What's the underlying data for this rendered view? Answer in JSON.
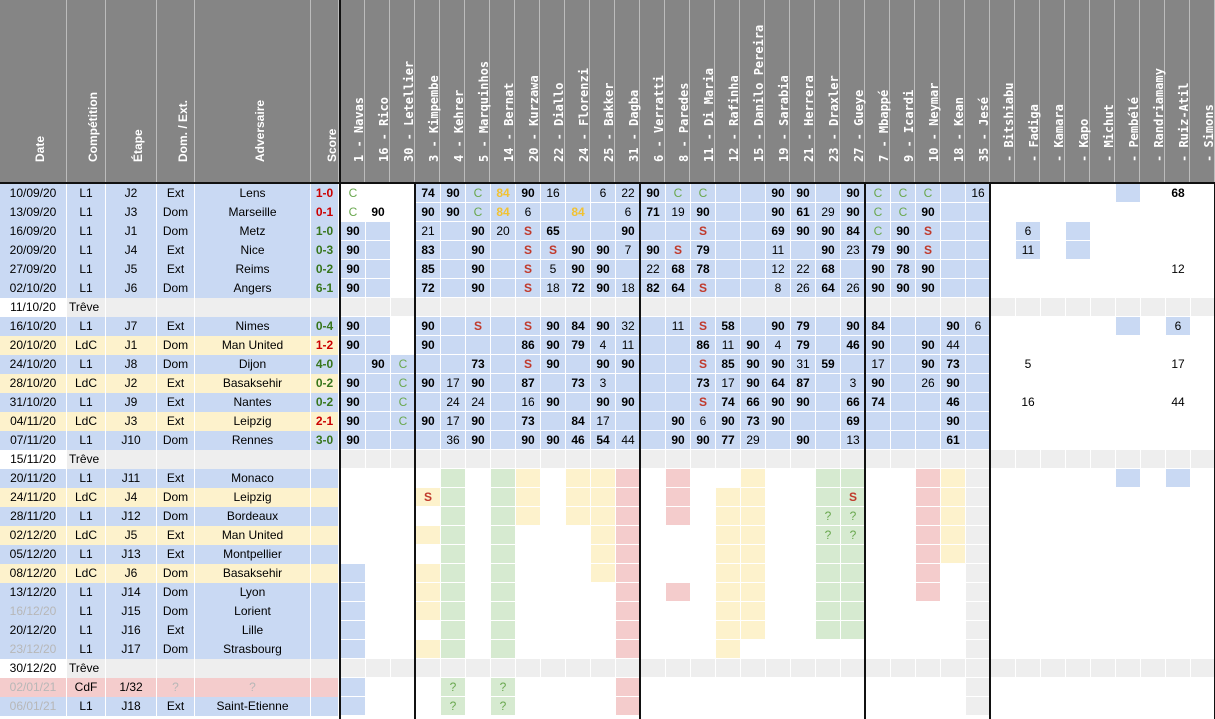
{
  "meta_headers": [
    "Date",
    "Compétition",
    "Étape",
    "Dom. / Ext.",
    "Adversaire",
    "Score"
  ],
  "players": [
    "1 - Navas",
    "16 - Rico",
    "30 - Letellier",
    "3 - Kimpembe",
    "4 - Kehrer",
    "5 - Marquinhos",
    "14 - Bernat",
    "20 - Kurzawa",
    "22 - Diallo",
    "24 - Florenzi",
    "25 - Bakker",
    "31 - Dagba",
    "6 - Verratti",
    "8 - Paredes",
    "11 - Di Maria",
    "12 - Rafinha",
    "15 - Danilo Pereira",
    "19 - Sarabia",
    "21 - Herrera",
    "23 - Draxler",
    "27 - Gueye",
    "7 - Mbappé",
    "9 - Icardi",
    "10 - Neymar",
    "18 - Kean",
    "35 - Jesé",
    "- Bitshiabu",
    "- Fadiga",
    "- Kamara",
    "- Kapo",
    "- Michut",
    "- Pembélé",
    "- Randriamamy",
    "- Ruiz-Atil",
    "- Simons"
  ],
  "colors": {
    "header": "#858585",
    "blue": "#c9d9f3",
    "lblue": "#dbe5f5",
    "green": "#d6ead0",
    "yellow": "#fdf2cc",
    "pink": "#f4cccc",
    "purple": "#d9d2e9",
    "gray": "#eeeeee",
    "win": "#38761d",
    "loss": "#cc0000",
    "draw": "#6aa84f",
    "ssub": "#f1c232",
    "red": "#a61c00",
    "sus": "#c0392b",
    "cgreen": "#6aa84f",
    "fade": "#b7b7b7"
  },
  "rows": [
    {
      "date": "10/09/20",
      "comp": "L1",
      "etape": "J2",
      "venue": "Ext",
      "opp": "Lens",
      "score": "1-0",
      "res": "L",
      "bg": "blue",
      "cells": [
        "C",
        "",
        "",
        "74",
        "90",
        "C",
        "84",
        "90",
        "16",
        "",
        "6",
        "22",
        "90",
        "C",
        "C",
        "",
        "",
        "90",
        "90",
        "",
        "90",
        "C",
        "C",
        "C",
        "",
        "16",
        "",
        "",
        "",
        "",
        "",
        "",
        "",
        "68",
        ""
      ]
    },
    {
      "date": "13/09/20",
      "comp": "L1",
      "etape": "J3",
      "venue": "Dom",
      "opp": "Marseille",
      "score": "0-1",
      "res": "L",
      "bg": "blue",
      "cells": [
        "C",
        "90",
        "",
        "90",
        "90",
        "C",
        "84",
        "6",
        "",
        "84",
        "",
        "6",
        "71",
        "19",
        "90",
        "",
        "",
        "90",
        "61",
        "29",
        "90",
        "C",
        "C",
        "90",
        "",
        "",
        "",
        "",
        "",
        "",
        "",
        "",
        "",
        "",
        ""
      ]
    },
    {
      "date": "16/09/20",
      "comp": "L1",
      "etape": "J1",
      "venue": "Dom",
      "opp": "Metz",
      "score": "1-0",
      "res": "W",
      "bg": "blue",
      "cells": [
        "90",
        "",
        "",
        "21",
        "",
        "90",
        "20",
        "S",
        "65",
        "",
        "",
        "90",
        "",
        "",
        "S",
        "",
        "",
        "69",
        "90",
        "90",
        "84",
        "C",
        "90",
        "S",
        "",
        "",
        "",
        "6",
        "",
        "",
        "",
        "",
        "",
        "",
        ""
      ]
    },
    {
      "date": "20/09/20",
      "comp": "L1",
      "etape": "J4",
      "venue": "Ext",
      "opp": "Nice",
      "score": "0-3",
      "res": "W",
      "bg": "blue",
      "cells": [
        "90",
        "",
        "",
        "83",
        "",
        "90",
        "",
        "S",
        "S",
        "90",
        "90",
        "7",
        "90",
        "S",
        "79",
        "",
        "",
        "11",
        "",
        "90",
        "23",
        "79",
        "90",
        "S",
        "",
        "",
        "",
        "11",
        "",
        "",
        "",
        "",
        "",
        "",
        ""
      ]
    },
    {
      "date": "27/09/20",
      "comp": "L1",
      "etape": "J5",
      "venue": "Ext",
      "opp": "Reims",
      "score": "0-2",
      "res": "W",
      "bg": "blue",
      "cells": [
        "90",
        "",
        "",
        "85",
        "",
        "90",
        "",
        "S",
        "5",
        "90",
        "90",
        "",
        "22",
        "68",
        "78",
        "",
        "",
        "12",
        "22",
        "68",
        "",
        "90",
        "78",
        "90",
        "",
        "",
        "",
        "",
        "",
        "",
        "",
        "",
        "",
        "12",
        ""
      ]
    },
    {
      "date": "02/10/20",
      "comp": "L1",
      "etape": "J6",
      "venue": "Dom",
      "opp": "Angers",
      "score": "6-1",
      "res": "W",
      "bg": "blue",
      "cells": [
        "90",
        "",
        "",
        "72",
        "",
        "90",
        "",
        "S",
        "18",
        "72",
        "90",
        "18",
        "82",
        "64",
        "S",
        "",
        "",
        "8",
        "26",
        "64",
        "26",
        "90",
        "90",
        "90",
        "",
        "",
        "",
        "",
        "",
        "",
        "",
        "",
        "",
        "",
        ""
      ]
    },
    {
      "date": "11/10/20",
      "comp": "Trêve",
      "etape": "",
      "venue": "",
      "opp": "",
      "score": "",
      "res": "",
      "bg": "gray",
      "treve": true,
      "cells": [
        "",
        "",
        "",
        "",
        "",
        "",
        "",
        "",
        "",
        "",
        "",
        "",
        "",
        "",
        "",
        "",
        "",
        "",
        "",
        "",
        "",
        "",
        "",
        "",
        "",
        "",
        "",
        "",
        "",
        "",
        "",
        "",
        "",
        "",
        ""
      ]
    },
    {
      "date": "16/10/20",
      "comp": "L1",
      "etape": "J7",
      "venue": "Ext",
      "opp": "Nimes",
      "score": "0-4",
      "res": "W",
      "bg": "blue",
      "cells": [
        "90",
        "",
        "",
        "90",
        "",
        "S",
        "",
        "S",
        "90",
        "84",
        "90",
        "32",
        "",
        "11",
        "S",
        "58",
        "",
        "90",
        "79",
        "",
        "90",
        "84",
        "",
        "",
        "90",
        "6",
        "",
        "",
        "",
        "",
        "",
        "",
        "",
        "6",
        ""
      ]
    },
    {
      "date": "20/10/20",
      "comp": "LdC",
      "etape": "J1",
      "venue": "Dom",
      "opp": "Man United",
      "score": "1-2",
      "res": "L",
      "bg": "yellow",
      "cells": [
        "90",
        "",
        "",
        "90",
        "",
        "",
        "",
        "86",
        "90",
        "79",
        "4",
        "11",
        "",
        "",
        "86",
        "11",
        "90",
        "4",
        "79",
        "",
        "46",
        "90",
        "",
        "90",
        "44",
        "",
        "",
        "",
        "",
        "",
        "",
        "",
        "",
        "",
        ""
      ]
    },
    {
      "date": "24/10/20",
      "comp": "L1",
      "etape": "J8",
      "venue": "Dom",
      "opp": "Dijon",
      "score": "4-0",
      "res": "W",
      "bg": "blue",
      "cells": [
        "",
        "90",
        "C",
        "",
        "",
        "73",
        "",
        "S",
        "90",
        "",
        "90",
        "90",
        "",
        "",
        "S",
        "85",
        "90",
        "90",
        "31",
        "59",
        "",
        "17",
        "",
        "90",
        "73",
        "",
        "",
        "5",
        "",
        "",
        "",
        "",
        "",
        "17",
        ""
      ]
    },
    {
      "date": "28/10/20",
      "comp": "LdC",
      "etape": "J2",
      "venue": "Ext",
      "opp": "Basaksehir",
      "score": "0-2",
      "res": "W",
      "bg": "yellow",
      "cells": [
        "90",
        "",
        "C",
        "90",
        "17",
        "90",
        "",
        "87",
        "",
        "73",
        "3",
        "",
        "",
        "",
        "73",
        "17",
        "90",
        "64",
        "87",
        "",
        "3",
        "90",
        "",
        "26",
        "90",
        "",
        "",
        "",
        "",
        "",
        "",
        "",
        "",
        "",
        ""
      ]
    },
    {
      "date": "31/10/20",
      "comp": "L1",
      "etape": "J9",
      "venue": "Ext",
      "opp": "Nantes",
      "score": "0-2",
      "res": "W",
      "bg": "blue",
      "cells": [
        "90",
        "",
        "C",
        "",
        "24",
        "24",
        "",
        "16",
        "90",
        "",
        "90",
        "90",
        "",
        "",
        "S",
        "74",
        "66",
        "90",
        "90",
        "",
        "66",
        "74",
        "",
        "",
        "46",
        "",
        "",
        "16",
        "",
        "",
        "",
        "",
        "",
        "44",
        ""
      ]
    },
    {
      "date": "04/11/20",
      "comp": "LdC",
      "etape": "J3",
      "venue": "Ext",
      "opp": "Leipzig",
      "score": "2-1",
      "res": "L",
      "bg": "yellow",
      "cells": [
        "90",
        "",
        "C",
        "90",
        "17",
        "90",
        "",
        "73",
        "",
        "84",
        "17",
        "",
        "",
        "90",
        "6",
        "90",
        "73",
        "90",
        "",
        "",
        "69",
        "",
        "",
        "",
        "90",
        "",
        "",
        "",
        "",
        "",
        "",
        "",
        "",
        "",
        ""
      ]
    },
    {
      "date": "07/11/20",
      "comp": "L1",
      "etape": "J10",
      "venue": "Dom",
      "opp": "Rennes",
      "score": "3-0",
      "res": "W",
      "bg": "blue",
      "cells": [
        "90",
        "",
        "",
        "",
        "36",
        "90",
        "",
        "90",
        "90",
        "46",
        "54",
        "44",
        "",
        "90",
        "90",
        "77",
        "29",
        "",
        "90",
        "",
        "13",
        "",
        "",
        "",
        "61",
        "",
        "",
        "",
        "",
        "",
        "",
        "",
        "",
        "",
        ""
      ]
    },
    {
      "date": "15/11/20",
      "comp": "Trêve",
      "etape": "",
      "venue": "",
      "opp": "",
      "score": "",
      "res": "",
      "bg": "gray",
      "treve": true,
      "cells": [
        "",
        "",
        "",
        "",
        "",
        "",
        "",
        "",
        "",
        "",
        "",
        "",
        "",
        "",
        "",
        "",
        "",
        "",
        "",
        "",
        "",
        "",
        "",
        "",
        "",
        "",
        "",
        "",
        "",
        "",
        "",
        "",
        "",
        "",
        ""
      ]
    },
    {
      "date": "20/11/20",
      "comp": "L1",
      "etape": "J11",
      "venue": "Ext",
      "opp": "Monaco",
      "score": "",
      "res": "",
      "bg": "blue",
      "cells": [
        "",
        "",
        "",
        "",
        "",
        "",
        "",
        "",
        "",
        "",
        "",
        "",
        "",
        "",
        "",
        "",
        "",
        "",
        "",
        "",
        "",
        "",
        "",
        "",
        "",
        "",
        "",
        "",
        "",
        "",
        "",
        "",
        "",
        "",
        ""
      ]
    },
    {
      "date": "24/11/20",
      "comp": "LdC",
      "etape": "J4",
      "venue": "Dom",
      "opp": "Leipzig",
      "score": "",
      "res": "",
      "bg": "yellow",
      "cells": [
        "",
        "",
        "",
        "S",
        "",
        "",
        "",
        "",
        "",
        "",
        "",
        "",
        "",
        "",
        "",
        "",
        "",
        "",
        "",
        "",
        "S",
        "",
        "",
        "",
        "",
        "",
        "",
        "",
        "",
        "",
        "",
        "",
        "",
        "",
        ""
      ]
    },
    {
      "date": "28/11/20",
      "comp": "L1",
      "etape": "J12",
      "venue": "Dom",
      "opp": "Bordeaux",
      "score": "",
      "res": "",
      "bg": "blue",
      "cells": [
        "",
        "",
        "",
        "",
        "",
        "",
        "",
        "",
        "",
        "",
        "",
        "",
        "",
        "",
        "",
        "",
        "",
        "",
        "",
        "?",
        "?",
        "",
        "",
        "",
        "",
        "",
        "",
        "",
        "",
        "",
        "",
        "",
        "",
        "",
        ""
      ]
    },
    {
      "date": "02/12/20",
      "comp": "LdC",
      "etape": "J5",
      "venue": "Ext",
      "opp": "Man United",
      "score": "",
      "res": "",
      "bg": "yellow",
      "cells": [
        "",
        "",
        "",
        "",
        "",
        "",
        "",
        "",
        "",
        "",
        "",
        "",
        "",
        "",
        "",
        "",
        "",
        "",
        "",
        "?",
        "?",
        "",
        "",
        "",
        "",
        "",
        "",
        "",
        "",
        "",
        "",
        "",
        "",
        "",
        ""
      ]
    },
    {
      "date": "05/12/20",
      "comp": "L1",
      "etape": "J13",
      "venue": "Ext",
      "opp": "Montpellier",
      "score": "",
      "res": "",
      "bg": "blue",
      "cells": [
        "",
        "",
        "",
        "",
        "",
        "",
        "",
        "",
        "",
        "",
        "",
        "",
        "",
        "",
        "",
        "",
        "",
        "",
        "",
        "",
        "",
        "",
        "",
        "",
        "",
        "",
        "",
        "",
        "",
        "",
        "",
        "",
        "",
        "",
        ""
      ]
    },
    {
      "date": "08/12/20",
      "comp": "LdC",
      "etape": "J6",
      "venue": "Dom",
      "opp": "Basaksehir",
      "score": "",
      "res": "",
      "bg": "yellow",
      "cells": [
        "",
        "",
        "",
        "",
        "",
        "",
        "",
        "",
        "",
        "",
        "",
        "",
        "",
        "",
        "",
        "",
        "",
        "",
        "",
        "",
        "",
        "",
        "",
        "",
        "",
        "",
        "",
        "",
        "",
        "",
        "",
        "",
        "",
        "",
        ""
      ]
    },
    {
      "date": "13/12/20",
      "comp": "L1",
      "etape": "J14",
      "venue": "Dom",
      "opp": "Lyon",
      "score": "",
      "res": "",
      "bg": "blue",
      "cells": [
        "",
        "",
        "",
        "",
        "",
        "",
        "",
        "",
        "",
        "",
        "",
        "",
        "",
        "",
        "",
        "",
        "",
        "",
        "",
        "",
        "",
        "",
        "",
        "",
        "",
        "",
        "",
        "",
        "",
        "",
        "",
        "",
        "",
        "",
        ""
      ]
    },
    {
      "date": "16/12/20",
      "comp": "L1",
      "etape": "J15",
      "venue": "Dom",
      "opp": "Lorient",
      "score": "",
      "res": "",
      "bg": "blue",
      "fade": true,
      "cells": [
        "",
        "",
        "",
        "",
        "",
        "",
        "",
        "",
        "",
        "",
        "",
        "",
        "",
        "",
        "",
        "",
        "",
        "",
        "",
        "",
        "",
        "",
        "",
        "",
        "",
        "",
        "",
        "",
        "",
        "",
        "",
        "",
        "",
        "",
        ""
      ]
    },
    {
      "date": "20/12/20",
      "comp": "L1",
      "etape": "J16",
      "venue": "Ext",
      "opp": "Lille",
      "score": "",
      "res": "",
      "bg": "blue",
      "cells": [
        "",
        "",
        "",
        "",
        "",
        "",
        "",
        "",
        "",
        "",
        "",
        "",
        "",
        "",
        "",
        "",
        "",
        "",
        "",
        "",
        "",
        "",
        "",
        "",
        "",
        "",
        "",
        "",
        "",
        "",
        "",
        "",
        "",
        "",
        ""
      ]
    },
    {
      "date": "23/12/20",
      "comp": "L1",
      "etape": "J17",
      "venue": "Dom",
      "opp": "Strasbourg",
      "score": "",
      "res": "",
      "bg": "blue",
      "fade": true,
      "cells": [
        "",
        "",
        "",
        "",
        "",
        "",
        "",
        "",
        "",
        "",
        "",
        "",
        "",
        "",
        "",
        "",
        "",
        "",
        "",
        "",
        "",
        "",
        "",
        "",
        "",
        "",
        "",
        "",
        "",
        "",
        "",
        "",
        "",
        "",
        ""
      ]
    },
    {
      "date": "30/12/20",
      "comp": "Trêve",
      "etape": "",
      "venue": "",
      "opp": "",
      "score": "",
      "res": "",
      "bg": "gray",
      "treve": true,
      "cells": [
        "",
        "",
        "",
        "",
        "",
        "",
        "",
        "",
        "",
        "",
        "",
        "",
        "",
        "",
        "",
        "",
        "",
        "",
        "",
        "",
        "",
        "",
        "",
        "",
        "",
        "",
        "",
        "",
        "",
        "",
        "",
        "",
        "",
        "",
        ""
      ]
    },
    {
      "date": "02/01/21",
      "comp": "CdF",
      "etape": "1/32",
      "venue": "?",
      "opp": "?",
      "score": "",
      "res": "",
      "bg": "pink",
      "fade": true,
      "cells": [
        "",
        "",
        "",
        "",
        "?",
        "",
        "?",
        "",
        "",
        "",
        "",
        "",
        "",
        "",
        "",
        "",
        "",
        "",
        "",
        "",
        "",
        "",
        "",
        "",
        "",
        "",
        "",
        "",
        "",
        "",
        "",
        "",
        "",
        "",
        ""
      ]
    },
    {
      "date": "06/01/21",
      "comp": "L1",
      "etape": "J18",
      "venue": "Ext",
      "opp": "Saint-Etienne",
      "score": "",
      "res": "",
      "bg": "blue",
      "fade": true,
      "cells": [
        "",
        "",
        "",
        "",
        "?",
        "",
        "?",
        "",
        "",
        "",
        "",
        "",
        "",
        "",
        "",
        "",
        "",
        "",
        "",
        "",
        "",
        "",
        "",
        "",
        "",
        "",
        "",
        "",
        "",
        "",
        "",
        "",
        "",
        "",
        ""
      ]
    }
  ]
}
